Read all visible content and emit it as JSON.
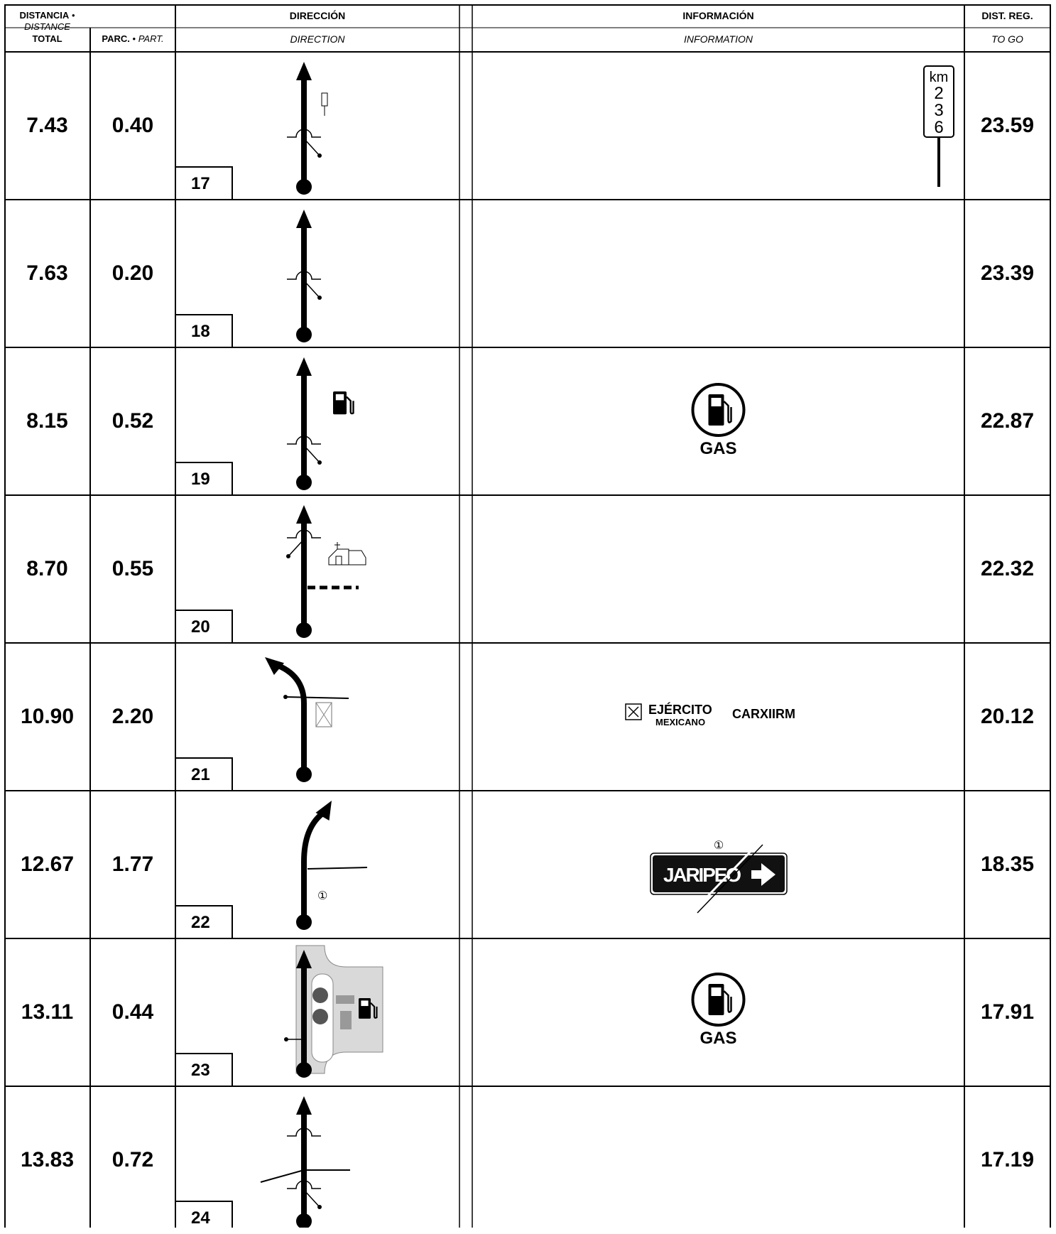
{
  "header": {
    "distance_es": "DISTANCIA",
    "bullet": "•",
    "distance_en": "DISTANCE",
    "total": "TOTAL",
    "partial_es": "PARC.",
    "partial_en": "PART.",
    "direction_es": "DIRECCIÓN",
    "direction_en": "DIRECTION",
    "information_es": "INFORMACIÓN",
    "information_en": "INFORMATION",
    "togo_es": "DIST. REG.",
    "togo_en": "TO GO"
  },
  "rows": [
    {
      "total": "7.43",
      "partial": "0.40",
      "waypoint": "17",
      "to_go": "23.59",
      "diagram": "straight-km-marker",
      "info": "km-post",
      "km_label": "km",
      "km_digits": [
        "2",
        "3",
        "6"
      ]
    },
    {
      "total": "7.63",
      "partial": "0.20",
      "waypoint": "18",
      "to_go": "23.39",
      "diagram": "straight-crossing",
      "info": "none"
    },
    {
      "total": "8.15",
      "partial": "0.52",
      "waypoint": "19",
      "to_go": "22.87",
      "diagram": "straight-gas",
      "info": "gas",
      "info_text": "GAS"
    },
    {
      "total": "8.70",
      "partial": "0.55",
      "waypoint": "20",
      "to_go": "22.32",
      "diagram": "straight-church",
      "info": "none"
    },
    {
      "total": "10.90",
      "partial": "2.20",
      "waypoint": "21",
      "to_go": "20.12",
      "diagram": "left-curve",
      "info": "army",
      "info_text_1": "EJÉRCITO",
      "info_text_2": "MEXICANO",
      "info_text_3": "CARXIIRM"
    },
    {
      "total": "12.67",
      "partial": "1.77",
      "waypoint": "22",
      "to_go": "18.35",
      "diagram": "right-curve",
      "info": "sign",
      "sign_text": "JARIPEO",
      "sign_ref": "①",
      "diagram_ref": "①"
    },
    {
      "total": "13.11",
      "partial": "0.44",
      "waypoint": "23",
      "to_go": "17.91",
      "diagram": "gas-station-map",
      "info": "gas",
      "info_text": "GAS"
    },
    {
      "total": "13.83",
      "partial": "0.72",
      "waypoint": "24",
      "to_go": "17.19",
      "diagram": "straight-multi",
      "info": "none"
    }
  ],
  "colors": {
    "ink": "#000000",
    "gray_area": "#d9d9d9",
    "gray_block": "#9a9a9a"
  }
}
